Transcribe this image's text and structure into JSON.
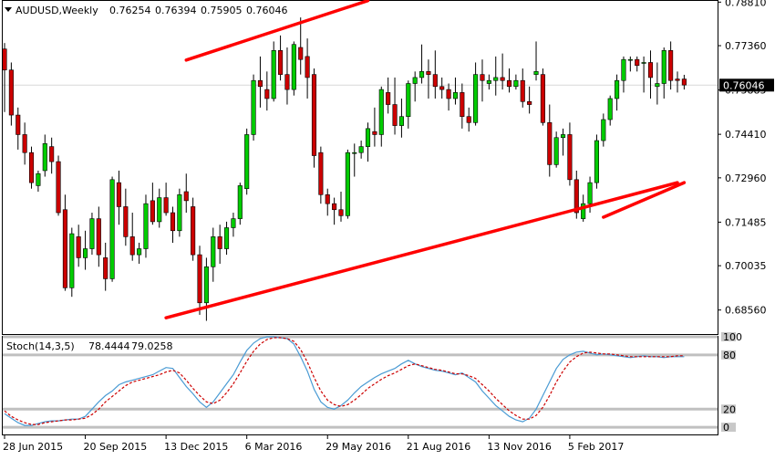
{
  "chart_data": [
    {
      "type": "candlestick",
      "symbol": "AUDUSD",
      "timeframe": "Weekly",
      "header": {
        "label": "AUDUSD,Weekly",
        "values": [
          "0.76254",
          "0.76394",
          "0.75905",
          "0.76046"
        ]
      },
      "current_price": "0.76046",
      "ylim": [
        0.6776,
        0.7885
      ],
      "price_ticks": [
        "0.78810",
        "0.77360",
        "0.75885",
        "0.74410",
        "0.72960",
        "0.71485",
        "0.70035",
        "0.68560"
      ],
      "x_ticks": [
        "28 Jun 2015",
        "20 Sep 2015",
        "13 Dec 2015",
        "6 Mar 2016",
        "29 May 2016",
        "21 Aug 2016",
        "13 Nov 2016",
        "5 Feb 2017"
      ],
      "x_tick_bar_index": [
        0,
        12,
        24,
        36,
        48,
        60,
        72,
        84
      ],
      "colors": {
        "bull": "#00cc00",
        "bear": "#cc0000",
        "wick": "#000000",
        "trendline": "#ff0000",
        "grid": "#c0c0c0",
        "price_marker_bg": "#000000"
      },
      "candles": [
        [
          0.7725,
          0.7745,
          0.7515,
          0.7655
        ],
        [
          0.7655,
          0.768,
          0.747,
          0.7505
        ],
        [
          0.7505,
          0.753,
          0.739,
          0.744
        ],
        [
          0.744,
          0.748,
          0.734,
          0.738
        ],
        [
          0.738,
          0.74,
          0.726,
          0.728
        ],
        [
          0.727,
          0.732,
          0.725,
          0.731
        ],
        [
          0.732,
          0.744,
          0.73,
          0.741
        ],
        [
          0.74,
          0.743,
          0.731,
          0.735
        ],
        [
          0.735,
          0.737,
          0.717,
          0.718
        ],
        [
          0.719,
          0.724,
          0.692,
          0.693
        ],
        [
          0.693,
          0.713,
          0.69,
          0.711
        ],
        [
          0.71,
          0.714,
          0.7,
          0.703
        ],
        [
          0.703,
          0.712,
          0.699,
          0.706
        ],
        [
          0.706,
          0.718,
          0.704,
          0.716
        ],
        [
          0.716,
          0.72,
          0.7,
          0.704
        ],
        [
          0.703,
          0.708,
          0.692,
          0.696
        ],
        [
          0.696,
          0.73,
          0.695,
          0.729
        ],
        [
          0.728,
          0.732,
          0.714,
          0.72
        ],
        [
          0.72,
          0.726,
          0.707,
          0.71
        ],
        [
          0.71,
          0.718,
          0.702,
          0.704
        ],
        [
          0.704,
          0.708,
          0.701,
          0.706
        ],
        [
          0.706,
          0.724,
          0.703,
          0.721
        ],
        [
          0.722,
          0.728,
          0.714,
          0.715
        ],
        [
          0.715,
          0.726,
          0.713,
          0.723
        ],
        [
          0.723,
          0.728,
          0.717,
          0.718
        ],
        [
          0.718,
          0.72,
          0.708,
          0.712
        ],
        [
          0.712,
          0.726,
          0.71,
          0.724
        ],
        [
          0.725,
          0.731,
          0.718,
          0.722
        ],
        [
          0.72,
          0.723,
          0.702,
          0.704
        ],
        [
          0.704,
          0.707,
          0.684,
          0.688
        ],
        [
          0.688,
          0.703,
          0.682,
          0.7
        ],
        [
          0.7,
          0.713,
          0.695,
          0.71
        ],
        [
          0.71,
          0.714,
          0.701,
          0.706
        ],
        [
          0.706,
          0.715,
          0.704,
          0.713
        ],
        [
          0.713,
          0.718,
          0.71,
          0.716
        ],
        [
          0.716,
          0.728,
          0.714,
          0.727
        ],
        [
          0.726,
          0.746,
          0.724,
          0.744
        ],
        [
          0.744,
          0.764,
          0.742,
          0.762
        ],
        [
          0.762,
          0.77,
          0.753,
          0.76
        ],
        [
          0.759,
          0.765,
          0.752,
          0.756
        ],
        [
          0.756,
          0.775,
          0.755,
          0.772
        ],
        [
          0.772,
          0.777,
          0.762,
          0.764
        ],
        [
          0.764,
          0.773,
          0.754,
          0.759
        ],
        [
          0.759,
          0.775,
          0.757,
          0.774
        ],
        [
          0.773,
          0.783,
          0.764,
          0.769
        ],
        [
          0.77,
          0.776,
          0.756,
          0.763
        ],
        [
          0.764,
          0.766,
          0.733,
          0.737
        ],
        [
          0.738,
          0.74,
          0.721,
          0.724
        ],
        [
          0.724,
          0.726,
          0.717,
          0.721
        ],
        [
          0.721,
          0.723,
          0.714,
          0.719
        ],
        [
          0.719,
          0.725,
          0.715,
          0.717
        ],
        [
          0.717,
          0.739,
          0.716,
          0.738
        ],
        [
          0.738,
          0.741,
          0.73,
          0.738
        ],
        [
          0.738,
          0.742,
          0.736,
          0.74
        ],
        [
          0.74,
          0.748,
          0.735,
          0.746
        ],
        [
          0.745,
          0.753,
          0.74,
          0.744
        ],
        [
          0.744,
          0.76,
          0.74,
          0.759
        ],
        [
          0.758,
          0.763,
          0.751,
          0.754
        ],
        [
          0.754,
          0.763,
          0.744,
          0.747
        ],
        [
          0.747,
          0.756,
          0.743,
          0.75
        ],
        [
          0.75,
          0.762,
          0.746,
          0.761
        ],
        [
          0.761,
          0.765,
          0.755,
          0.763
        ],
        [
          0.763,
          0.774,
          0.761,
          0.765
        ],
        [
          0.765,
          0.769,
          0.756,
          0.764
        ],
        [
          0.764,
          0.772,
          0.756,
          0.76
        ],
        [
          0.76,
          0.763,
          0.756,
          0.759
        ],
        [
          0.759,
          0.761,
          0.752,
          0.756
        ],
        [
          0.756,
          0.763,
          0.754,
          0.758
        ],
        [
          0.758,
          0.761,
          0.746,
          0.75
        ],
        [
          0.75,
          0.753,
          0.745,
          0.748
        ],
        [
          0.748,
          0.768,
          0.747,
          0.764
        ],
        [
          0.764,
          0.769,
          0.755,
          0.762
        ],
        [
          0.761,
          0.764,
          0.759,
          0.762
        ],
        [
          0.762,
          0.77,
          0.757,
          0.763
        ],
        [
          0.763,
          0.771,
          0.759,
          0.762
        ],
        [
          0.762,
          0.766,
          0.758,
          0.76
        ],
        [
          0.76,
          0.764,
          0.759,
          0.762
        ],
        [
          0.762,
          0.766,
          0.753,
          0.755
        ],
        [
          0.755,
          0.76,
          0.751,
          0.754
        ],
        [
          0.764,
          0.775,
          0.762,
          0.765
        ],
        [
          0.764,
          0.766,
          0.747,
          0.748
        ],
        [
          0.748,
          0.754,
          0.73,
          0.734
        ],
        [
          0.734,
          0.745,
          0.733,
          0.743
        ],
        [
          0.743,
          0.746,
          0.737,
          0.744
        ],
        [
          0.744,
          0.748,
          0.727,
          0.729
        ],
        [
          0.729,
          0.732,
          0.716,
          0.718
        ],
        [
          0.716,
          0.724,
          0.715,
          0.721
        ],
        [
          0.721,
          0.73,
          0.718,
          0.728
        ],
        [
          0.728,
          0.744,
          0.726,
          0.742
        ],
        [
          0.742,
          0.751,
          0.74,
          0.749
        ],
        [
          0.749,
          0.757,
          0.747,
          0.756
        ],
        [
          0.756,
          0.764,
          0.752,
          0.762
        ],
        [
          0.762,
          0.77,
          0.758,
          0.769
        ],
        [
          0.769,
          0.77,
          0.765,
          0.769
        ],
        [
          0.769,
          0.77,
          0.765,
          0.767
        ],
        [
          0.768,
          0.77,
          0.758,
          0.768
        ],
        [
          0.768,
          0.772,
          0.756,
          0.763
        ],
        [
          0.76,
          0.768,
          0.754,
          0.761
        ],
        [
          0.761,
          0.773,
          0.756,
          0.772
        ],
        [
          0.772,
          0.775,
          0.759,
          0.762
        ],
        [
          0.7625,
          0.765,
          0.758,
          0.762
        ],
        [
          0.7625,
          0.7639,
          0.759,
          0.7605
        ]
      ],
      "trendlines": [
        {
          "from": [
            27,
            0.7688
          ],
          "to": [
            54,
            0.7886
          ]
        },
        {
          "from": [
            24,
            0.683
          ],
          "to": [
            100,
            0.728
          ]
        },
        {
          "from": [
            89,
            0.7165
          ],
          "to": [
            101,
            0.728
          ]
        }
      ]
    },
    {
      "type": "line",
      "indicator": "Stoch(14,3,5)",
      "header": {
        "label": "Stoch(14,3,5)",
        "values": [
          "78.4444",
          "79.0258"
        ]
      },
      "ylim": [
        -8,
        100
      ],
      "y_ticks": [
        "100",
        "80",
        "20",
        "0"
      ],
      "levels": [
        80,
        20
      ],
      "series": [
        {
          "name": "%K",
          "color": "#4a9bd4",
          "values": [
            15,
            10,
            5,
            2,
            2,
            4,
            6,
            7,
            7,
            8,
            9,
            9,
            12,
            20,
            28,
            35,
            40,
            47,
            50,
            52,
            54,
            56,
            58,
            62,
            66,
            65,
            55,
            45,
            37,
            28,
            22,
            28,
            38,
            48,
            58,
            72,
            85,
            93,
            98,
            100,
            100,
            99,
            98,
            92,
            78,
            62,
            42,
            28,
            22,
            20,
            24,
            30,
            38,
            45,
            50,
            55,
            59,
            62,
            65,
            70,
            74,
            70,
            67,
            65,
            63,
            62,
            60,
            58,
            60,
            55,
            50,
            40,
            32,
            24,
            18,
            12,
            8,
            6,
            10,
            20,
            35,
            50,
            65,
            75,
            80,
            83,
            84,
            82,
            80,
            81,
            80,
            79,
            78,
            77,
            78,
            79,
            78,
            78,
            77,
            78,
            78,
            78
          ]
        },
        {
          "name": "%D",
          "color": "#cc0000",
          "values": [
            18,
            12,
            8,
            5,
            3,
            3,
            5,
            6,
            7,
            8,
            8,
            9,
            10,
            14,
            20,
            28,
            34,
            40,
            46,
            50,
            52,
            54,
            56,
            58,
            61,
            63,
            60,
            52,
            43,
            35,
            28,
            26,
            30,
            38,
            48,
            60,
            73,
            84,
            92,
            97,
            99,
            99,
            98,
            95,
            86,
            72,
            55,
            40,
            30,
            25,
            23,
            25,
            30,
            36,
            43,
            48,
            53,
            57,
            60,
            64,
            68,
            70,
            68,
            66,
            64,
            63,
            61,
            59,
            59,
            57,
            54,
            47,
            40,
            32,
            25,
            18,
            13,
            9,
            9,
            13,
            22,
            35,
            50,
            62,
            72,
            78,
            82,
            83,
            82,
            81,
            81,
            80,
            79,
            78,
            78,
            78,
            78,
            78,
            78,
            78,
            79,
            79
          ]
        }
      ]
    }
  ]
}
